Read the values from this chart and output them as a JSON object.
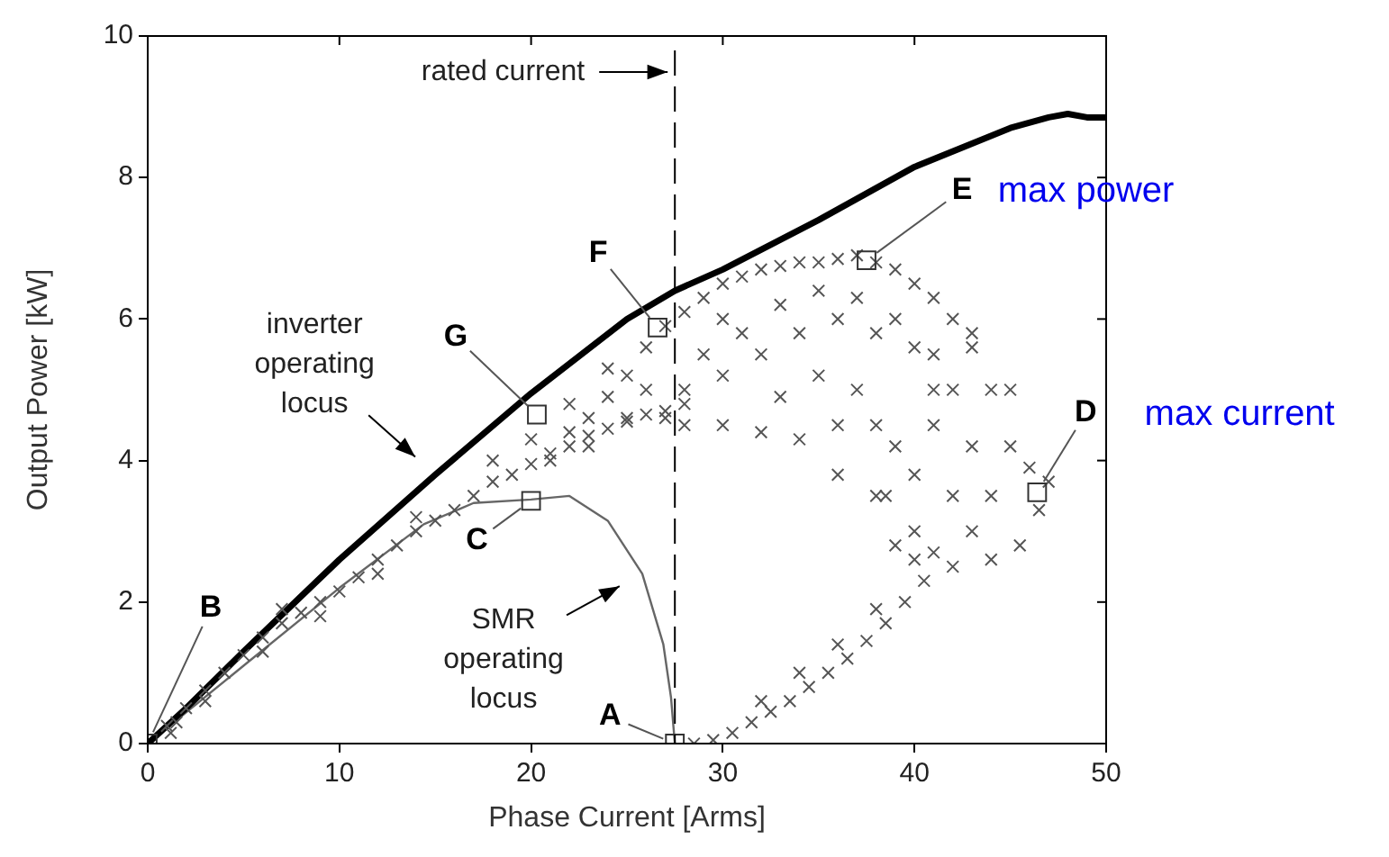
{
  "chart_data": {
    "type": "scatter",
    "xlabel": "Phase Current [Arms]",
    "ylabel": "Output Power [kW]",
    "xlim": [
      0,
      50
    ],
    "xticks": [
      0,
      10,
      20,
      30,
      40,
      50
    ],
    "ylim": [
      0,
      10
    ],
    "yticks": [
      0,
      2,
      4,
      6,
      8,
      10
    ],
    "grid": false,
    "legend": false,
    "ref_lines": [
      {
        "axis": "x",
        "value": 27.5,
        "label": "rated current",
        "line_style": "dashed",
        "color": "#000000"
      }
    ],
    "annotations": [
      {
        "text": "A",
        "x": 27.5,
        "y": 0
      },
      {
        "text": "B",
        "x": 0,
        "y": 0
      },
      {
        "text": "C",
        "x": 20,
        "y": 3.43
      },
      {
        "text": "D",
        "x": 46.4,
        "y": 3.55
      },
      {
        "text": "E",
        "x": 37.5,
        "y": 6.83
      },
      {
        "text": "F",
        "x": 26.6,
        "y": 5.88
      },
      {
        "text": "G",
        "x": 20.3,
        "y": 4.65
      },
      "max power",
      "max current"
    ],
    "series": [
      {
        "name": "inverter operating locus",
        "type": "line",
        "color": "#000000",
        "marker": "none",
        "x": [
          0,
          2,
          5,
          10,
          15,
          20,
          25,
          27.5,
          30,
          35,
          40,
          45,
          47,
          48,
          49,
          50
        ],
        "values": [
          0,
          0.5,
          1.3,
          2.6,
          3.8,
          4.95,
          6.0,
          6.4,
          6.7,
          7.4,
          8.15,
          8.7,
          8.85,
          8.9,
          8.85,
          8.85
        ]
      },
      {
        "name": "SMR operating locus",
        "type": "line",
        "color": "#666666",
        "marker": "none",
        "x": [
          0,
          5,
          10,
          14.4,
          17,
          20,
          22,
          24,
          25.8,
          26.9,
          27.3,
          27.5
        ],
        "values": [
          0,
          1.1,
          2.2,
          3.1,
          3.4,
          3.45,
          3.5,
          3.15,
          2.4,
          1.4,
          0.65,
          0
        ]
      },
      {
        "type": "scatter",
        "color": "#555555",
        "marker": "cross",
        "x": [
          1.2,
          1,
          1.5,
          2,
          3,
          3,
          4,
          5,
          6,
          6,
          7,
          7,
          8,
          9,
          9,
          10,
          11,
          12,
          12,
          13,
          14,
          14,
          15,
          16,
          17,
          18,
          18,
          19,
          20,
          20,
          21,
          22,
          23,
          24,
          25,
          26,
          27,
          28,
          28.5,
          29.5,
          30.5,
          31.5,
          32,
          32.5,
          33.5,
          34,
          34.5,
          35.5,
          36,
          36.5,
          37.5,
          38,
          38.5,
          39.5,
          40,
          40.5,
          41,
          42,
          43,
          44,
          38.5,
          39,
          40,
          41,
          42,
          43,
          44,
          45,
          46,
          44,
          41,
          43,
          45,
          40,
          39,
          42,
          38,
          46.5,
          45.5,
          47,
          22,
          23,
          24,
          25,
          26,
          27,
          28,
          29,
          30,
          31,
          32,
          33,
          34,
          35,
          36,
          37,
          38,
          39,
          40,
          41,
          42,
          43,
          28,
          30,
          32,
          34,
          36,
          38,
          40,
          28,
          30,
          32,
          34,
          36,
          37,
          35,
          33,
          31,
          29,
          27,
          25,
          23,
          21,
          22,
          24,
          26,
          33,
          35,
          37,
          39,
          41,
          30,
          36,
          38
        ],
        "values": [
          0.15,
          0.25,
          0.3,
          0.5,
          0.75,
          0.6,
          1.0,
          1.25,
          1.5,
          1.3,
          1.7,
          1.9,
          1.85,
          2.0,
          1.8,
          2.15,
          2.35,
          2.6,
          2.4,
          2.8,
          3.0,
          3.2,
          3.15,
          3.3,
          3.5,
          3.7,
          4.0,
          3.8,
          3.95,
          4.3,
          4.1,
          4.2,
          4.35,
          4.45,
          4.55,
          4.65,
          4.7,
          4.8,
          0,
          0.05,
          0.15,
          0.3,
          0.6,
          0.45,
          0.6,
          1.0,
          0.8,
          1.0,
          1.4,
          1.2,
          1.45,
          1.9,
          1.7,
          2.0,
          2.6,
          2.3,
          2.7,
          2.5,
          3.0,
          2.6,
          3.5,
          4.2,
          3.8,
          4.5,
          3.5,
          4.2,
          5.0,
          4.2,
          3.9,
          3.5,
          5.5,
          5.8,
          5.0,
          3.0,
          2.8,
          5.0,
          4.5,
          3.3,
          2.8,
          3.7,
          4.4,
          4.6,
          4.9,
          5.2,
          5.6,
          5.9,
          6.1,
          6.3,
          6.5,
          6.6,
          6.7,
          6.75,
          6.8,
          6.8,
          6.85,
          6.9,
          6.8,
          6.7,
          6.5,
          6.3,
          6.0,
          5.6,
          5.0,
          5.2,
          5.5,
          5.8,
          6.0,
          5.8,
          5.6,
          4.5,
          4.5,
          4.4,
          4.3,
          4.5,
          5.0,
          5.2,
          4.9,
          5.8,
          5.5,
          4.6,
          4.6,
          4.2,
          4.0,
          4.8,
          5.3,
          5.0,
          6.2,
          6.4,
          6.3,
          6.0,
          5.0,
          6.0,
          3.8,
          3.5
        ]
      },
      {
        "type": "scatter",
        "color": "#333333",
        "marker": "square",
        "x": [
          27.5,
          0,
          20,
          46.4,
          37.5,
          26.6,
          20.3
        ],
        "values": [
          0,
          0,
          3.43,
          3.55,
          6.83,
          5.88,
          4.65
        ]
      }
    ]
  }
}
